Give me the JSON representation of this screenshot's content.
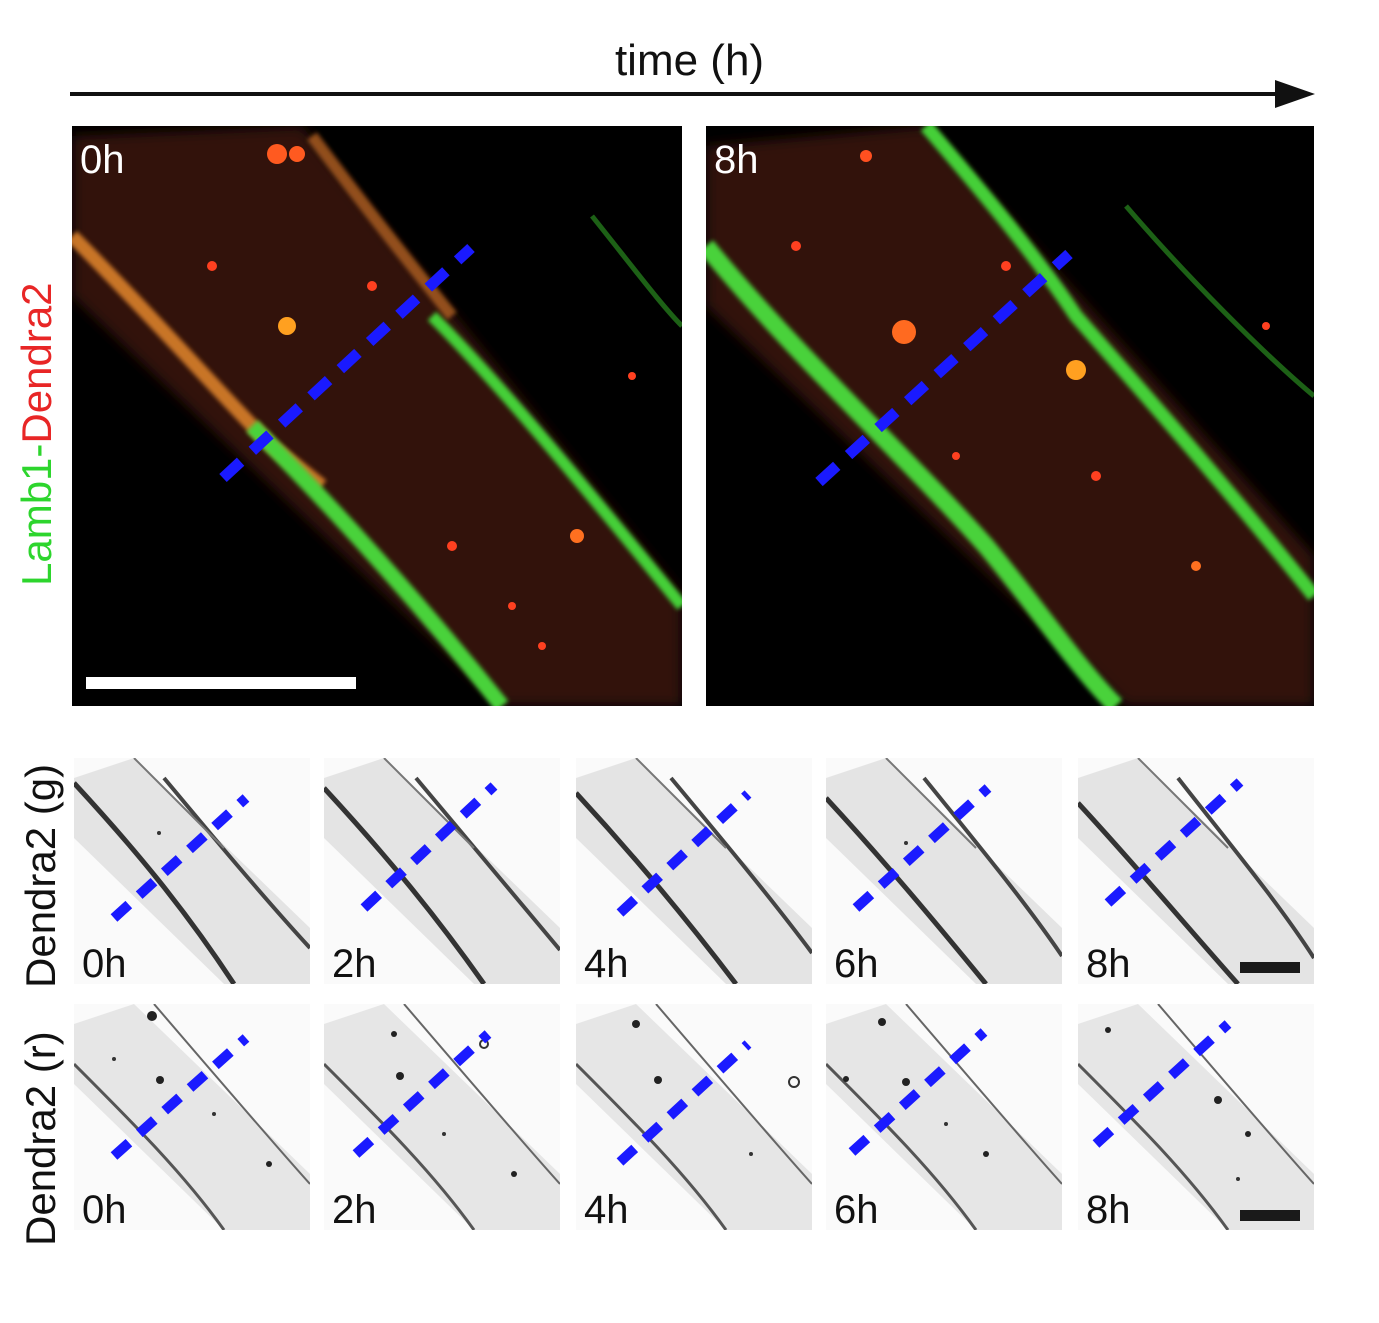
{
  "time_axis": {
    "label": "time (h)"
  },
  "top_row": {
    "channel_label": {
      "part1": "Lamb1",
      "separator": "-",
      "part2": "Dendra2"
    },
    "panels": [
      {
        "time": "0h"
      },
      {
        "time": "8h"
      }
    ]
  },
  "green_row": {
    "label": "Dendra2 (g)",
    "panels": [
      {
        "time": "0h"
      },
      {
        "time": "2h"
      },
      {
        "time": "4h"
      },
      {
        "time": "6h"
      },
      {
        "time": "8h"
      }
    ]
  },
  "red_row": {
    "label": "Dendra2 (r)",
    "panels": [
      {
        "time": "0h"
      },
      {
        "time": "2h"
      },
      {
        "time": "4h"
      },
      {
        "time": "6h"
      },
      {
        "time": "8h"
      }
    ]
  },
  "colors": {
    "green_channel": "#2dd52d",
    "red_channel": "#e82626",
    "line_marker": "#1a1aff"
  }
}
